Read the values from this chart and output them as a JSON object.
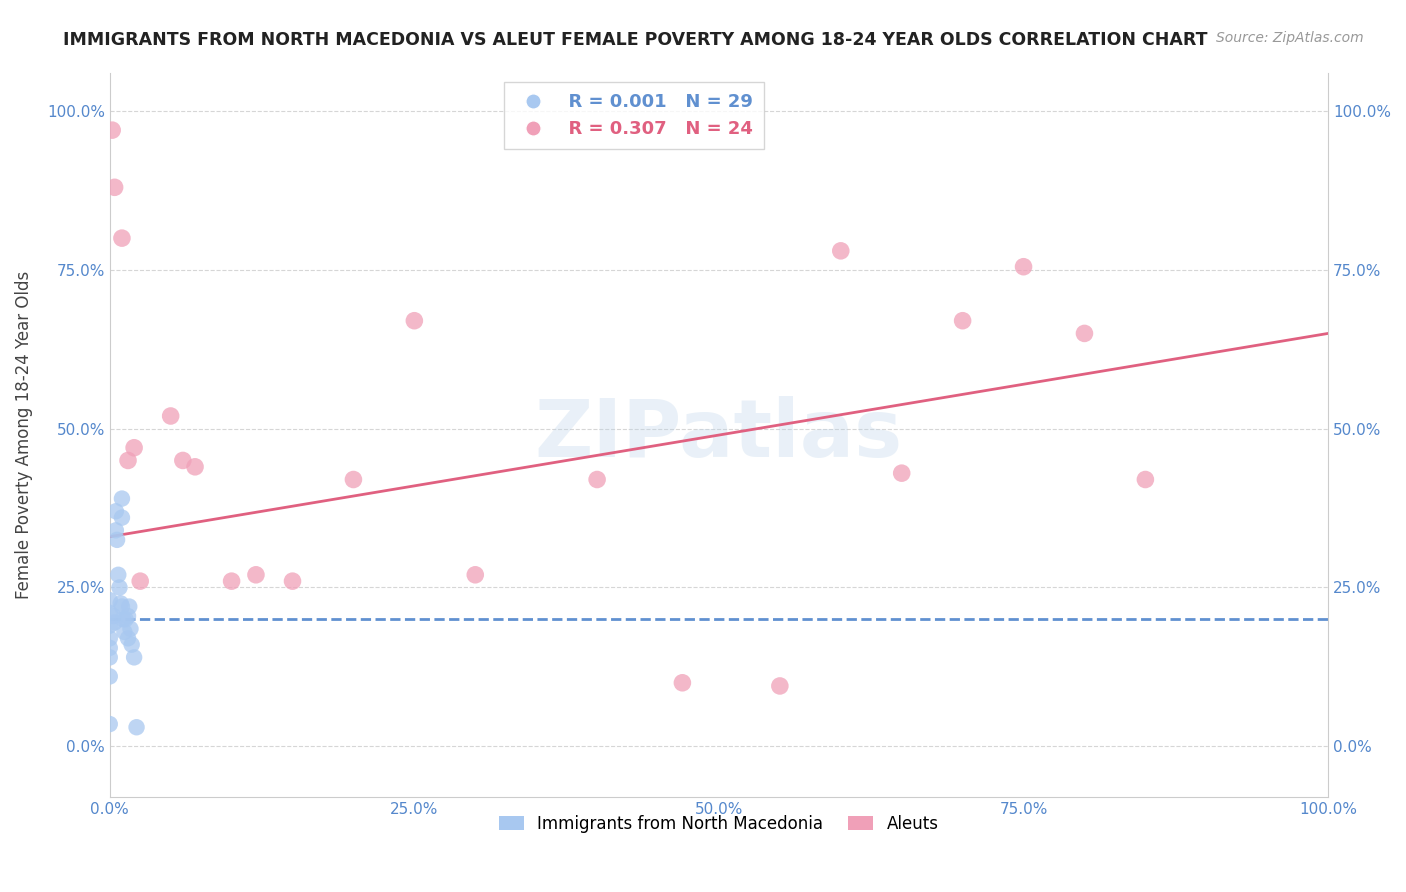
{
  "title": "IMMIGRANTS FROM NORTH MACEDONIA VS ALEUT FEMALE POVERTY AMONG 18-24 YEAR OLDS CORRELATION CHART",
  "source": "Source: ZipAtlas.com",
  "ylabel": "Female Poverty Among 18-24 Year Olds",
  "legend_label_blue": "Immigrants from North Macedonia",
  "legend_label_pink": "Aleuts",
  "R_blue": "R = 0.001",
  "N_blue": "N = 29",
  "R_pink": "R = 0.307",
  "N_pink": "N = 24",
  "color_blue": "#a8c8f0",
  "color_pink": "#f0a0b8",
  "color_blue_line": "#6090d0",
  "color_pink_line": "#e06080",
  "watermark": "ZIPatlas",
  "blue_x": [
    0.0,
    0.0,
    0.0,
    0.0,
    0.0,
    0.0,
    0.0,
    0.0,
    0.3,
    0.4,
    0.5,
    0.5,
    0.6,
    0.7,
    0.8,
    0.9,
    1.0,
    1.0,
    1.0,
    1.1,
    1.2,
    1.3,
    1.5,
    1.5,
    1.6,
    1.7,
    1.8,
    2.0,
    2.2
  ],
  "blue_y": [
    19.0,
    17.0,
    15.5,
    21.0,
    23.0,
    14.0,
    11.0,
    3.5,
    20.5,
    19.5,
    37.0,
    34.0,
    32.5,
    27.0,
    25.0,
    22.5,
    39.0,
    36.0,
    22.0,
    20.0,
    18.0,
    20.0,
    20.5,
    17.0,
    22.0,
    18.5,
    16.0,
    14.0,
    3.0
  ],
  "pink_x": [
    0.2,
    0.4,
    1.0,
    1.5,
    2.0,
    2.5,
    5.0,
    6.0,
    7.0,
    10.0,
    12.0,
    15.0,
    20.0,
    25.0,
    30.0,
    40.0,
    47.0,
    55.0,
    60.0,
    65.0,
    70.0,
    75.0,
    80.0,
    85.0
  ],
  "pink_y": [
    97.0,
    88.0,
    80.0,
    45.0,
    47.0,
    26.0,
    52.0,
    45.0,
    44.0,
    26.0,
    27.0,
    26.0,
    42.0,
    67.0,
    27.0,
    42.0,
    10.0,
    9.5,
    78.0,
    43.0,
    67.0,
    75.5,
    65.0,
    42.0
  ],
  "pink_line_x0": 0.0,
  "pink_line_x1": 100.0,
  "pink_line_y0": 33.0,
  "pink_line_y1": 65.0,
  "blue_line_y": 20.0,
  "xlim": [
    0.0,
    100.0
  ],
  "ylim": [
    -8.0,
    106.0
  ],
  "xticks": [
    0.0,
    25.0,
    50.0,
    75.0,
    100.0
  ],
  "xticklabels": [
    "0.0%",
    "25.0%",
    "50.0%",
    "75.0%",
    "100.0%"
  ],
  "yticks": [
    0.0,
    25.0,
    50.0,
    75.0,
    100.0
  ],
  "yticklabels": [
    "0.0%",
    "25.0%",
    "50.0%",
    "75.0%",
    "100.0%"
  ]
}
